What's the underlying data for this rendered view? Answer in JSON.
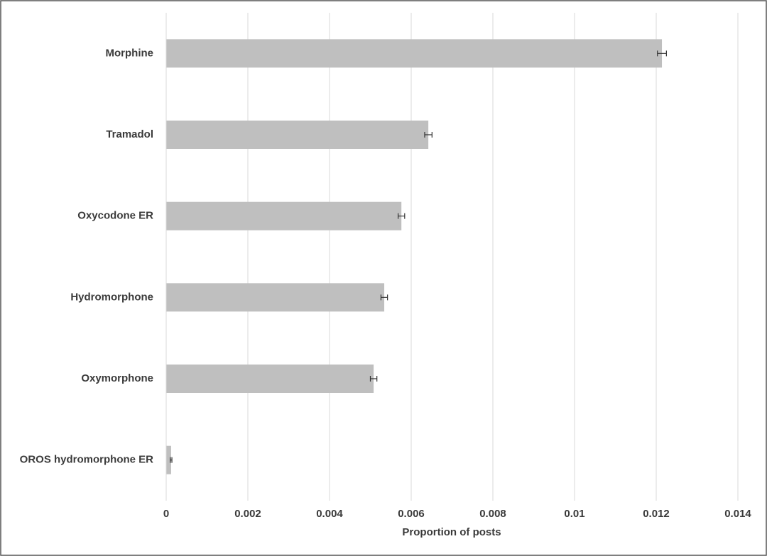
{
  "chart_data": {
    "type": "bar",
    "orientation": "horizontal",
    "xlabel": "Proportion of posts",
    "categories": [
      "Morphine",
      "Tramadol",
      "Oxycodone ER",
      "Hydromorphone",
      "Oxymorphone",
      "OROS hydromorphone ER"
    ],
    "values": [
      0.01214,
      0.00642,
      0.00576,
      0.00534,
      0.00508,
      0.00012
    ],
    "errors": [
      0.00011,
      9e-05,
      8e-05,
      8e-05,
      8e-05,
      2e-05
    ],
    "color": "#bfbfbf",
    "xlim": [
      0,
      0.014
    ],
    "xticks": [
      0,
      0.002,
      0.004,
      0.006,
      0.008,
      0.01,
      0.012,
      0.014
    ],
    "grid": true
  }
}
